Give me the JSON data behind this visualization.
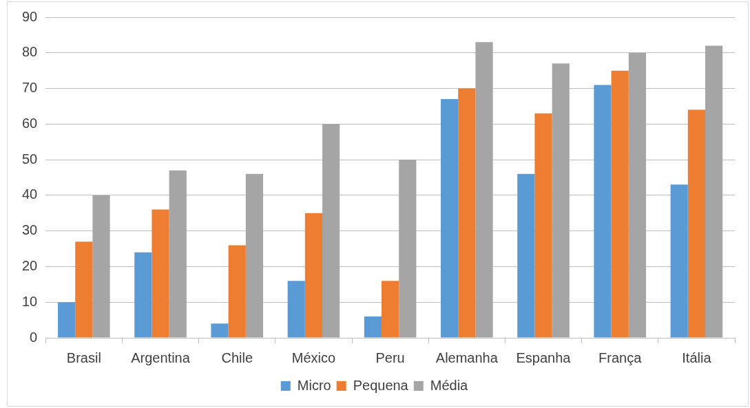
{
  "chart_data": {
    "type": "bar",
    "categories": [
      "Brasil",
      "Argentina",
      "Chile",
      "México",
      "Peru",
      "Alemanha",
      "Espanha",
      "França",
      "Itália"
    ],
    "series": [
      {
        "name": "Micro",
        "color": "#5b9bd5",
        "values": [
          10,
          24,
          4,
          16,
          6,
          67,
          46,
          71,
          43
        ]
      },
      {
        "name": "Pequena",
        "color": "#ed7d31",
        "values": [
          27,
          36,
          26,
          35,
          16,
          70,
          63,
          75,
          64
        ]
      },
      {
        "name": "Média",
        "color": "#a5a5a5",
        "values": [
          40,
          47,
          46,
          60,
          50,
          83,
          77,
          80,
          82
        ]
      }
    ],
    "ylim": [
      0,
      90
    ],
    "yticks": [
      0,
      10,
      20,
      30,
      40,
      50,
      60,
      70,
      80,
      90
    ],
    "grid": "y",
    "legend": "bottom"
  }
}
